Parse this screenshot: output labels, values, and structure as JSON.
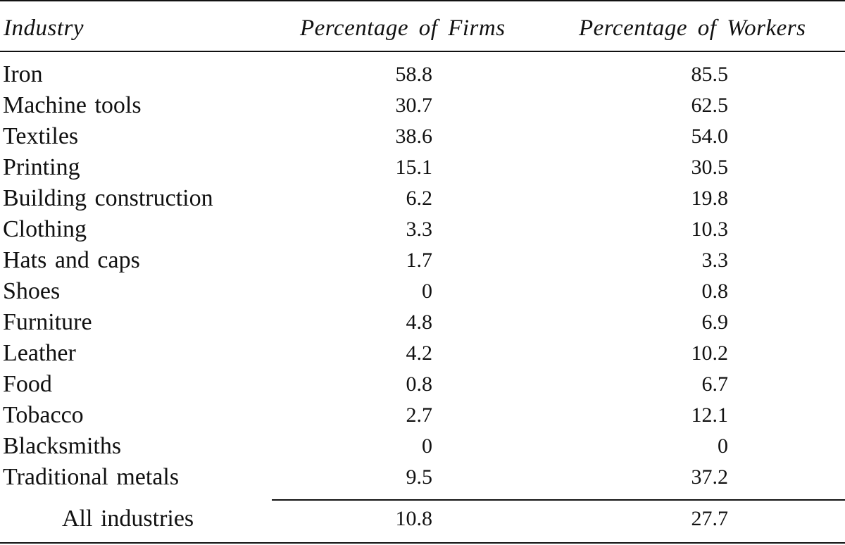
{
  "header": {
    "industry": "Industry",
    "firms": "Percentage of Firms",
    "workers": "Percentage of Workers"
  },
  "rows": [
    {
      "industry": "Iron",
      "firms": "58.8",
      "workers": "85.5"
    },
    {
      "industry": "Machine tools",
      "firms": "30.7",
      "workers": "62.5"
    },
    {
      "industry": "Textiles",
      "firms": "38.6",
      "workers": "54.0"
    },
    {
      "industry": "Printing",
      "firms": "15.1",
      "workers": "30.5"
    },
    {
      "industry": "Building construction",
      "firms": "6.2",
      "workers": "19.8"
    },
    {
      "industry": "Clothing",
      "firms": "3.3",
      "workers": "10.3"
    },
    {
      "industry": "Hats and caps",
      "firms": "1.7",
      "workers": "3.3"
    },
    {
      "industry": "Shoes",
      "firms": "0",
      "workers": "0.8"
    },
    {
      "industry": "Furniture",
      "firms": "4.8",
      "workers": "6.9"
    },
    {
      "industry": "Leather",
      "firms": "4.2",
      "workers": "10.2"
    },
    {
      "industry": "Food",
      "firms": "0.8",
      "workers": "6.7"
    },
    {
      "industry": "Tobacco",
      "firms": "2.7",
      "workers": "12.1"
    },
    {
      "industry": "Blacksmiths",
      "firms": "0",
      "workers": "0"
    },
    {
      "industry": "Traditional metals",
      "firms": "9.5",
      "workers": "37.2"
    }
  ],
  "total": {
    "industry": "All industries",
    "firms": "10.8",
    "workers": "27.7"
  }
}
